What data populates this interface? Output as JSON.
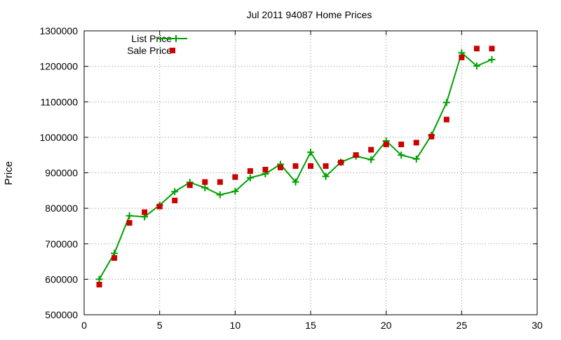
{
  "chart_data": {
    "type": "line",
    "title": "Jul 2011 94087 Home Prices",
    "xlabel": "",
    "ylabel": "Price",
    "xlim": [
      0,
      30
    ],
    "ylim": [
      500000,
      1300000
    ],
    "x_ticks": [
      0,
      5,
      10,
      15,
      20,
      25,
      30
    ],
    "y_ticks": [
      500000,
      600000,
      700000,
      800000,
      900000,
      1000000,
      1100000,
      1200000,
      1300000
    ],
    "grid": true,
    "legend_position": "top-left",
    "series": [
      {
        "name": "List Price",
        "style": "line+cross",
        "color": "#00a000",
        "x": [
          1,
          2,
          3,
          4,
          5,
          6,
          7,
          8,
          9,
          10,
          11,
          12,
          13,
          14,
          15,
          16,
          17,
          18,
          19,
          20,
          21,
          22,
          23,
          24,
          25,
          26,
          27
        ],
        "values": [
          600000,
          673000,
          779000,
          776000,
          809000,
          847000,
          873000,
          858000,
          838000,
          848000,
          886000,
          897000,
          924000,
          874000,
          958000,
          890000,
          930000,
          947000,
          937000,
          990000,
          950000,
          939000,
          1006000,
          1098000,
          1238000,
          1201000,
          1219000
        ]
      },
      {
        "name": "Sale Price",
        "style": "points-square",
        "color": "#cc0000",
        "x": [
          1,
          2,
          3,
          4,
          5,
          6,
          7,
          8,
          9,
          10,
          11,
          12,
          13,
          14,
          15,
          16,
          17,
          18,
          19,
          20,
          21,
          22,
          23,
          24,
          25,
          26,
          27
        ],
        "values": [
          585000,
          660000,
          759000,
          789000,
          805000,
          822000,
          865000,
          874000,
          874000,
          888000,
          905000,
          909000,
          915000,
          919000,
          919000,
          919000,
          929000,
          950000,
          965000,
          980000,
          980000,
          985000,
          1002000,
          1050000,
          1225000,
          1250000,
          1250000
        ]
      }
    ]
  }
}
